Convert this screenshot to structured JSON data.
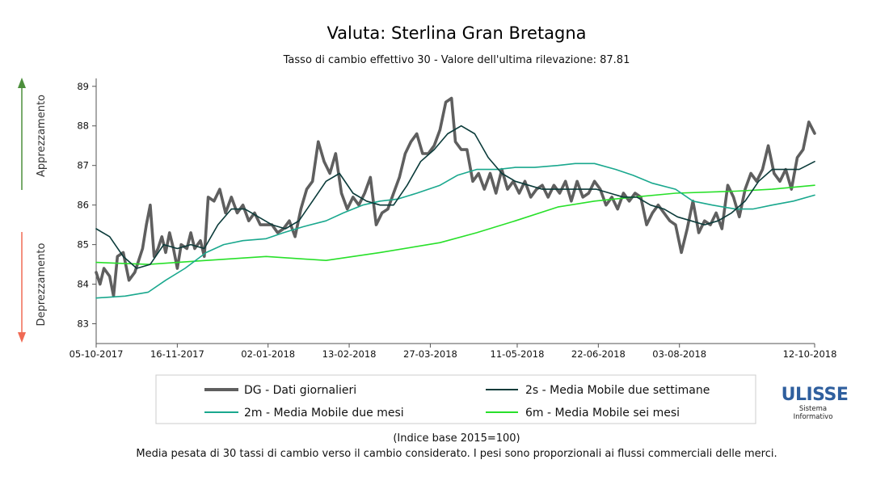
{
  "colors": {
    "daily": "#5f5f5f",
    "ma2s": "#0b3b3a",
    "ma2m": "#1aa88e",
    "ma6m": "#28e02a",
    "up_arrow": "#4c8f3c",
    "down_arrow": "#f06a54",
    "logo": "#2f5f9e"
  },
  "side_labels": {
    "up": "Apprezzamento",
    "down": "Deprezzamento"
  },
  "logo": {
    "name": "ULISSE",
    "line1": "Sistema",
    "line2": "Informativo"
  },
  "footer": {
    "line1": "(Indice base 2015=100)",
    "line2": "Media pesata di 30 tassi di cambio verso il cambio considerato. I pesi sono proporzionali ai flussi commerciali delle merci."
  },
  "chart_data": {
    "type": "line",
    "title": "Valuta: Sterlina Gran Bretagna",
    "subtitle": "Tasso di cambio effettivo 30 - Valore dell'ultima rilevazione: 87.81",
    "x_start": "05-10-2017",
    "x_end": "12-10-2018",
    "x_ticks": [
      "05-10-2017",
      "16-11-2017",
      "02-01-2018",
      "13-02-2018",
      "27-03-2018",
      "11-05-2018",
      "22-06-2018",
      "03-08-2018",
      "12-10-2018"
    ],
    "ylim": [
      82.5,
      89.2
    ],
    "y_ticks": [
      83,
      84,
      85,
      86,
      87,
      88,
      89
    ],
    "legend": {
      "placement": "bottom"
    },
    "series": [
      {
        "name": "DG - Dati giornalieri",
        "points": [
          [
            "05-10-2017",
            84.3
          ],
          [
            "07-10-2017",
            84.0
          ],
          [
            "09-10-2017",
            84.4
          ],
          [
            "12-10-2017",
            84.2
          ],
          [
            "14-10-2017",
            83.7
          ],
          [
            "16-10-2017",
            84.7
          ],
          [
            "19-10-2017",
            84.8
          ],
          [
            "22-10-2017",
            84.1
          ],
          [
            "25-10-2017",
            84.3
          ],
          [
            "27-10-2017",
            84.6
          ],
          [
            "29-10-2017",
            84.9
          ],
          [
            "31-10-2017",
            85.5
          ],
          [
            "02-11-2017",
            86.0
          ],
          [
            "04-11-2017",
            84.7
          ],
          [
            "06-11-2017",
            84.9
          ],
          [
            "08-11-2017",
            85.2
          ],
          [
            "10-11-2017",
            84.8
          ],
          [
            "12-11-2017",
            85.3
          ],
          [
            "14-11-2017",
            84.9
          ],
          [
            "16-11-2017",
            84.4
          ],
          [
            "18-11-2017",
            85.0
          ],
          [
            "21-11-2017",
            84.9
          ],
          [
            "23-11-2017",
            85.3
          ],
          [
            "25-11-2017",
            84.9
          ],
          [
            "28-11-2017",
            85.1
          ],
          [
            "30-11-2017",
            84.7
          ],
          [
            "02-12-2017",
            86.2
          ],
          [
            "05-12-2017",
            86.1
          ],
          [
            "08-12-2017",
            86.4
          ],
          [
            "11-12-2017",
            85.8
          ],
          [
            "14-12-2017",
            86.2
          ],
          [
            "17-12-2017",
            85.8
          ],
          [
            "20-12-2017",
            86.0
          ],
          [
            "23-12-2017",
            85.6
          ],
          [
            "26-12-2017",
            85.8
          ],
          [
            "29-12-2017",
            85.5
          ],
          [
            "01-01-2018",
            85.5
          ],
          [
            "04-01-2018",
            85.5
          ],
          [
            "07-01-2018",
            85.3
          ],
          [
            "10-01-2018",
            85.4
          ],
          [
            "13-01-2018",
            85.6
          ],
          [
            "16-01-2018",
            85.2
          ],
          [
            "19-01-2018",
            85.9
          ],
          [
            "22-01-2018",
            86.4
          ],
          [
            "25-01-2018",
            86.6
          ],
          [
            "28-01-2018",
            87.6
          ],
          [
            "31-01-2018",
            87.1
          ],
          [
            "03-02-2018",
            86.8
          ],
          [
            "06-02-2018",
            87.3
          ],
          [
            "09-02-2018",
            86.3
          ],
          [
            "12-02-2018",
            85.9
          ],
          [
            "15-02-2018",
            86.2
          ],
          [
            "18-02-2018",
            86.0
          ],
          [
            "21-02-2018",
            86.3
          ],
          [
            "24-02-2018",
            86.7
          ],
          [
            "27-02-2018",
            85.5
          ],
          [
            "02-03-2018",
            85.8
          ],
          [
            "05-03-2018",
            85.9
          ],
          [
            "08-03-2018",
            86.3
          ],
          [
            "11-03-2018",
            86.7
          ],
          [
            "14-03-2018",
            87.3
          ],
          [
            "17-03-2018",
            87.6
          ],
          [
            "20-03-2018",
            87.8
          ],
          [
            "23-03-2018",
            87.3
          ],
          [
            "26-03-2018",
            87.3
          ],
          [
            "29-03-2018",
            87.5
          ],
          [
            "01-04-2018",
            87.9
          ],
          [
            "04-04-2018",
            88.6
          ],
          [
            "07-04-2018",
            88.7
          ],
          [
            "09-04-2018",
            87.6
          ],
          [
            "12-04-2018",
            87.4
          ],
          [
            "15-04-2018",
            87.4
          ],
          [
            "18-04-2018",
            86.6
          ],
          [
            "21-04-2018",
            86.8
          ],
          [
            "24-04-2018",
            86.4
          ],
          [
            "27-04-2018",
            86.8
          ],
          [
            "30-04-2018",
            86.3
          ],
          [
            "03-05-2018",
            86.9
          ],
          [
            "06-05-2018",
            86.4
          ],
          [
            "09-05-2018",
            86.6
          ],
          [
            "12-05-2018",
            86.3
          ],
          [
            "15-05-2018",
            86.6
          ],
          [
            "18-05-2018",
            86.2
          ],
          [
            "21-05-2018",
            86.4
          ],
          [
            "24-05-2018",
            86.5
          ],
          [
            "27-05-2018",
            86.2
          ],
          [
            "30-05-2018",
            86.5
          ],
          [
            "02-06-2018",
            86.3
          ],
          [
            "05-06-2018",
            86.6
          ],
          [
            "08-06-2018",
            86.1
          ],
          [
            "11-06-2018",
            86.6
          ],
          [
            "14-06-2018",
            86.2
          ],
          [
            "17-06-2018",
            86.3
          ],
          [
            "20-06-2018",
            86.6
          ],
          [
            "23-06-2018",
            86.4
          ],
          [
            "26-06-2018",
            86.0
          ],
          [
            "29-06-2018",
            86.2
          ],
          [
            "02-07-2018",
            85.9
          ],
          [
            "05-07-2018",
            86.3
          ],
          [
            "08-07-2018",
            86.1
          ],
          [
            "11-07-2018",
            86.3
          ],
          [
            "14-07-2018",
            86.2
          ],
          [
            "17-07-2018",
            85.5
          ],
          [
            "20-07-2018",
            85.8
          ],
          [
            "23-07-2018",
            86.0
          ],
          [
            "26-07-2018",
            85.8
          ],
          [
            "29-07-2018",
            85.6
          ],
          [
            "01-08-2018",
            85.5
          ],
          [
            "04-08-2018",
            84.8
          ],
          [
            "07-08-2018",
            85.4
          ],
          [
            "10-08-2018",
            86.1
          ],
          [
            "13-08-2018",
            85.3
          ],
          [
            "16-08-2018",
            85.6
          ],
          [
            "19-08-2018",
            85.5
          ],
          [
            "22-08-2018",
            85.8
          ],
          [
            "25-08-2018",
            85.4
          ],
          [
            "28-08-2018",
            86.5
          ],
          [
            "31-08-2018",
            86.2
          ],
          [
            "03-09-2018",
            85.7
          ],
          [
            "06-09-2018",
            86.4
          ],
          [
            "09-09-2018",
            86.8
          ],
          [
            "12-09-2018",
            86.6
          ],
          [
            "15-09-2018",
            86.9
          ],
          [
            "18-09-2018",
            87.5
          ],
          [
            "21-09-2018",
            86.8
          ],
          [
            "24-09-2018",
            86.6
          ],
          [
            "27-09-2018",
            86.9
          ],
          [
            "30-09-2018",
            86.4
          ],
          [
            "03-10-2018",
            87.2
          ],
          [
            "06-10-2018",
            87.4
          ],
          [
            "09-10-2018",
            88.1
          ],
          [
            "12-10-2018",
            87.81
          ]
        ]
      },
      {
        "name": "2s - Media Mobile due settimane",
        "points": [
          [
            "05-10-2017",
            85.4
          ],
          [
            "12-10-2017",
            85.2
          ],
          [
            "19-10-2017",
            84.7
          ],
          [
            "26-10-2017",
            84.4
          ],
          [
            "02-11-2017",
            84.5
          ],
          [
            "09-11-2017",
            85.0
          ],
          [
            "16-11-2017",
            84.9
          ],
          [
            "23-11-2017",
            85.0
          ],
          [
            "30-11-2017",
            84.9
          ],
          [
            "07-12-2017",
            85.5
          ],
          [
            "14-12-2017",
            85.9
          ],
          [
            "21-12-2017",
            85.9
          ],
          [
            "28-12-2017",
            85.7
          ],
          [
            "04-01-2018",
            85.5
          ],
          [
            "11-01-2018",
            85.4
          ],
          [
            "18-01-2018",
            85.6
          ],
          [
            "25-01-2018",
            86.1
          ],
          [
            "01-02-2018",
            86.6
          ],
          [
            "08-02-2018",
            86.8
          ],
          [
            "15-02-2018",
            86.3
          ],
          [
            "22-02-2018",
            86.1
          ],
          [
            "01-03-2018",
            86.0
          ],
          [
            "08-03-2018",
            86.0
          ],
          [
            "15-03-2018",
            86.5
          ],
          [
            "22-03-2018",
            87.1
          ],
          [
            "29-03-2018",
            87.4
          ],
          [
            "05-04-2018",
            87.8
          ],
          [
            "12-04-2018",
            88.0
          ],
          [
            "19-04-2018",
            87.8
          ],
          [
            "26-04-2018",
            87.2
          ],
          [
            "03-05-2018",
            86.8
          ],
          [
            "10-05-2018",
            86.6
          ],
          [
            "17-05-2018",
            86.5
          ],
          [
            "24-05-2018",
            86.4
          ],
          [
            "31-05-2018",
            86.4
          ],
          [
            "07-06-2018",
            86.4
          ],
          [
            "14-06-2018",
            86.4
          ],
          [
            "21-06-2018",
            86.4
          ],
          [
            "28-06-2018",
            86.3
          ],
          [
            "05-07-2018",
            86.2
          ],
          [
            "12-07-2018",
            86.2
          ],
          [
            "19-07-2018",
            86.0
          ],
          [
            "26-07-2018",
            85.9
          ],
          [
            "02-08-2018",
            85.7
          ],
          [
            "09-08-2018",
            85.6
          ],
          [
            "16-08-2018",
            85.5
          ],
          [
            "23-08-2018",
            85.6
          ],
          [
            "30-08-2018",
            85.8
          ],
          [
            "06-09-2018",
            86.1
          ],
          [
            "13-09-2018",
            86.6
          ],
          [
            "20-09-2018",
            86.9
          ],
          [
            "27-09-2018",
            86.9
          ],
          [
            "04-10-2018",
            86.9
          ],
          [
            "12-10-2018",
            87.1
          ]
        ]
      },
      {
        "name": "2m - Media Mobile due mesi",
        "points": [
          [
            "05-10-2017",
            83.65
          ],
          [
            "20-10-2017",
            83.7
          ],
          [
            "01-11-2017",
            83.8
          ],
          [
            "10-11-2017",
            84.1
          ],
          [
            "20-11-2017",
            84.4
          ],
          [
            "01-12-2017",
            84.8
          ],
          [
            "10-12-2017",
            85.0
          ],
          [
            "20-12-2017",
            85.1
          ],
          [
            "01-01-2018",
            85.15
          ],
          [
            "10-01-2018",
            85.3
          ],
          [
            "20-01-2018",
            85.45
          ],
          [
            "01-02-2018",
            85.6
          ],
          [
            "10-02-2018",
            85.8
          ],
          [
            "20-02-2018",
            86.0
          ],
          [
            "01-03-2018",
            86.1
          ],
          [
            "10-03-2018",
            86.15
          ],
          [
            "20-03-2018",
            86.3
          ],
          [
            "01-04-2018",
            86.5
          ],
          [
            "10-04-2018",
            86.75
          ],
          [
            "20-04-2018",
            86.9
          ],
          [
            "01-05-2018",
            86.9
          ],
          [
            "10-05-2018",
            86.95
          ],
          [
            "20-05-2018",
            86.95
          ],
          [
            "01-06-2018",
            87.0
          ],
          [
            "10-06-2018",
            87.05
          ],
          [
            "20-06-2018",
            87.05
          ],
          [
            "01-07-2018",
            86.9
          ],
          [
            "10-07-2018",
            86.75
          ],
          [
            "20-07-2018",
            86.55
          ],
          [
            "01-08-2018",
            86.4
          ],
          [
            "10-08-2018",
            86.1
          ],
          [
            "20-08-2018",
            86.0
          ],
          [
            "01-09-2018",
            85.9
          ],
          [
            "10-09-2018",
            85.9
          ],
          [
            "20-09-2018",
            86.0
          ],
          [
            "01-10-2018",
            86.1
          ],
          [
            "12-10-2018",
            86.25
          ]
        ]
      },
      {
        "name": "6m - Media Mobile sei mesi",
        "points": [
          [
            "05-10-2017",
            84.55
          ],
          [
            "01-11-2017",
            84.5
          ],
          [
            "01-12-2017",
            84.6
          ],
          [
            "01-01-2018",
            84.7
          ],
          [
            "01-02-2018",
            84.6
          ],
          [
            "01-03-2018",
            84.8
          ],
          [
            "01-04-2018",
            85.05
          ],
          [
            "20-04-2018",
            85.3
          ],
          [
            "10-05-2018",
            85.6
          ],
          [
            "01-06-2018",
            85.95
          ],
          [
            "20-06-2018",
            86.1
          ],
          [
            "10-07-2018",
            86.2
          ],
          [
            "01-08-2018",
            86.3
          ],
          [
            "01-09-2018",
            86.35
          ],
          [
            "20-09-2018",
            86.4
          ],
          [
            "12-10-2018",
            86.5
          ]
        ]
      }
    ]
  }
}
